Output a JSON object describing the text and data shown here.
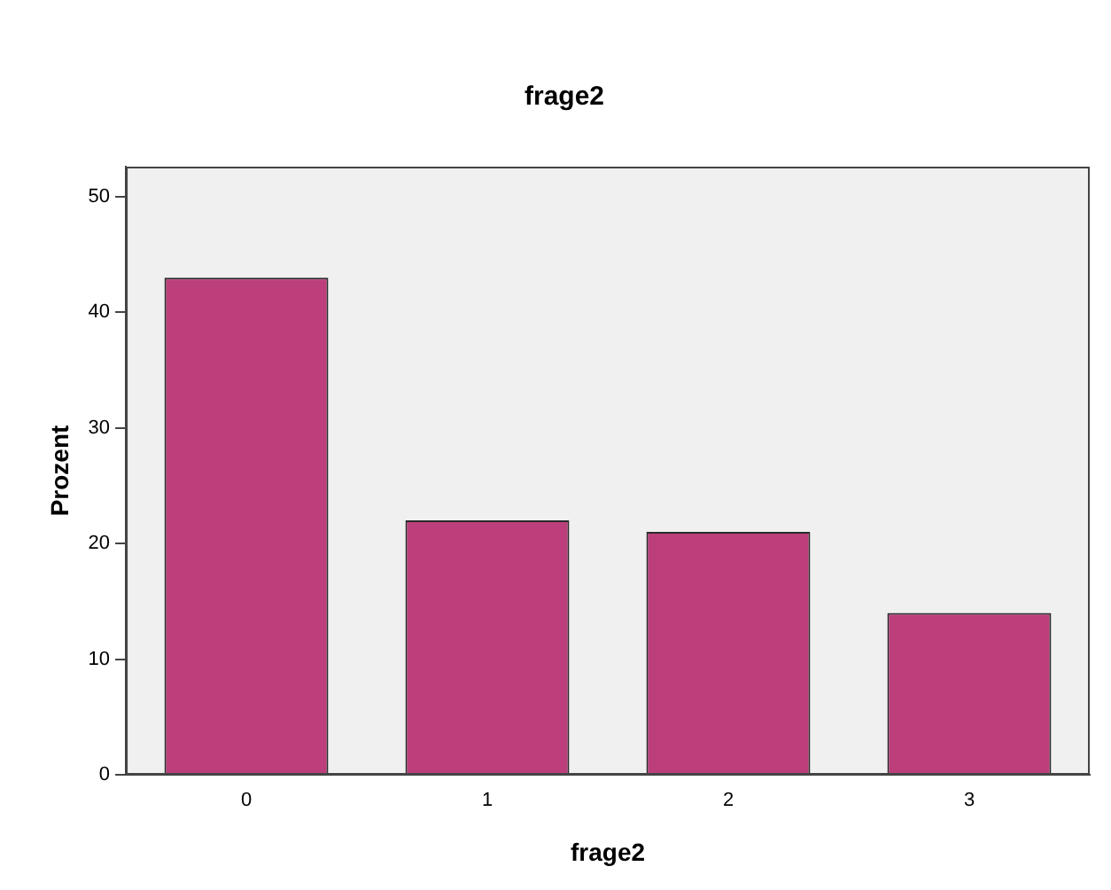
{
  "chart_data": {
    "type": "bar",
    "title": "frage2",
    "xlabel": "frage2",
    "ylabel": "Prozent",
    "categories": [
      "0",
      "1",
      "2",
      "3"
    ],
    "values": [
      43,
      22,
      21,
      14
    ],
    "color": "#bc3f7c",
    "ylim": [
      0,
      52.6
    ],
    "yticks": [
      0,
      10,
      20,
      30,
      40,
      50
    ],
    "grid": false,
    "legend": false
  }
}
